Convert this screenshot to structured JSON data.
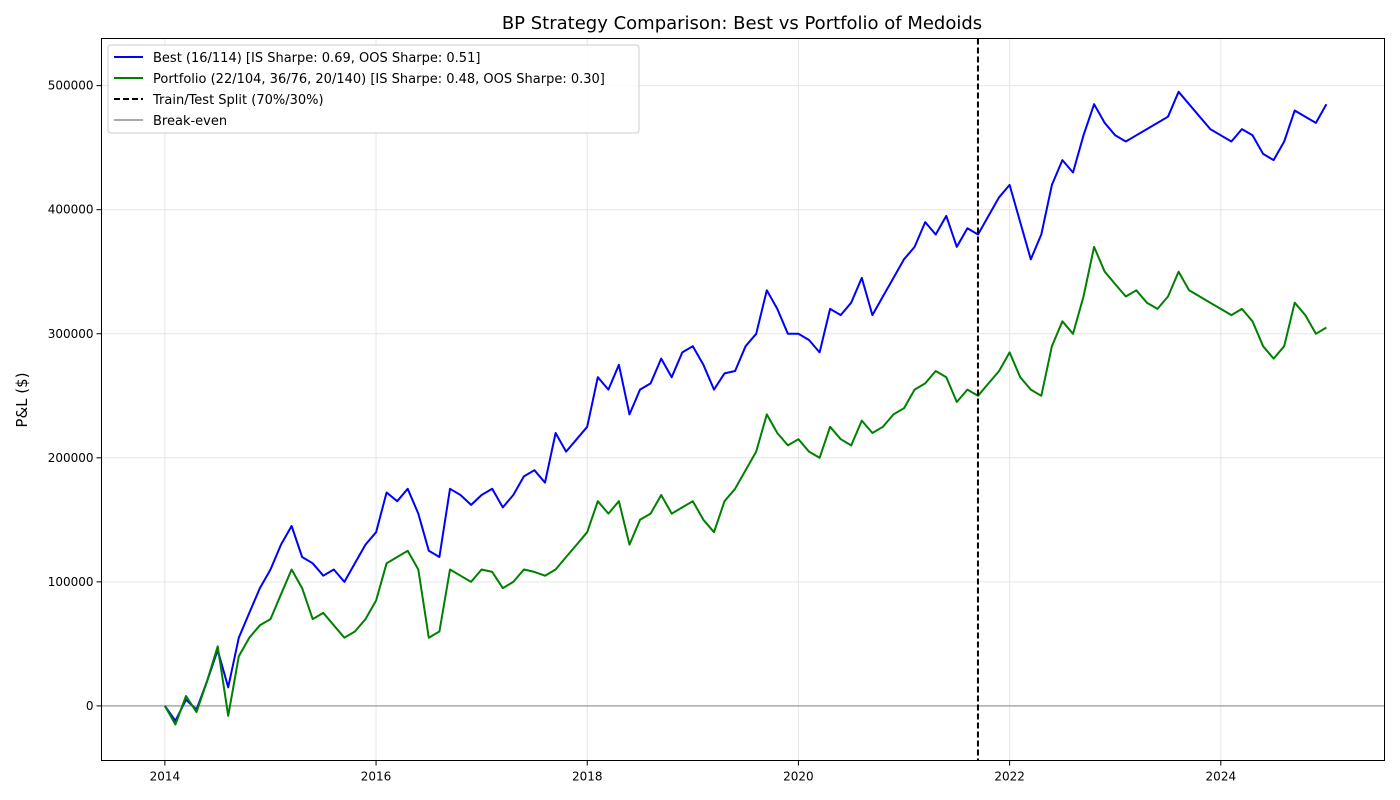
{
  "chart_data": {
    "type": "line",
    "title": "BP Strategy Comparison: Best vs Portfolio of Medoids",
    "xlabel": "",
    "ylabel": "P&L ($)",
    "xlim": [
      2013.4,
      2025.55
    ],
    "ylim": [
      -44000,
      538000
    ],
    "grid": true,
    "legend_position": "top-left",
    "x_ticks": [
      {
        "value": 2014,
        "label": "2014"
      },
      {
        "value": 2016,
        "label": "2016"
      },
      {
        "value": 2018,
        "label": "2018"
      },
      {
        "value": 2020,
        "label": "2020"
      },
      {
        "value": 2022,
        "label": "2022"
      },
      {
        "value": 2024,
        "label": "2024"
      }
    ],
    "y_ticks": [
      {
        "value": 0,
        "label": "0"
      },
      {
        "value": 100000,
        "label": "100000"
      },
      {
        "value": 200000,
        "label": "200000"
      },
      {
        "value": 300000,
        "label": "300000"
      },
      {
        "value": 400000,
        "label": "400000"
      },
      {
        "value": 500000,
        "label": "500000"
      }
    ],
    "series": [
      {
        "name": "Best (16/114) [IS Sharpe: 0.69, OOS Sharpe: 0.51]",
        "color": "#0000ff",
        "x": [
          2014.0,
          2014.1,
          2014.2,
          2014.3,
          2014.4,
          2014.5,
          2014.6,
          2014.7,
          2014.8,
          2014.9,
          2015.0,
          2015.1,
          2015.2,
          2015.3,
          2015.4,
          2015.5,
          2015.6,
          2015.7,
          2015.8,
          2015.9,
          2016.0,
          2016.1,
          2016.2,
          2016.3,
          2016.4,
          2016.5,
          2016.6,
          2016.7,
          2016.8,
          2016.9,
          2017.0,
          2017.1,
          2017.2,
          2017.3,
          2017.4,
          2017.5,
          2017.6,
          2017.7,
          2017.8,
          2017.9,
          2018.0,
          2018.1,
          2018.2,
          2018.3,
          2018.4,
          2018.5,
          2018.6,
          2018.7,
          2018.8,
          2018.9,
          2019.0,
          2019.1,
          2019.2,
          2019.3,
          2019.4,
          2019.5,
          2019.6,
          2019.7,
          2019.8,
          2019.9,
          2020.0,
          2020.1,
          2020.2,
          2020.3,
          2020.4,
          2020.5,
          2020.6,
          2020.7,
          2020.8,
          2020.9,
          2021.0,
          2021.1,
          2021.2,
          2021.3,
          2021.4,
          2021.5,
          2021.6,
          2021.7,
          2021.8,
          2021.9,
          2022.0,
          2022.1,
          2022.2,
          2022.3,
          2022.4,
          2022.5,
          2022.6,
          2022.7,
          2022.8,
          2022.9,
          2023.0,
          2023.1,
          2023.2,
          2023.3,
          2023.4,
          2023.5,
          2023.6,
          2023.7,
          2023.8,
          2023.9,
          2024.0,
          2024.1,
          2024.2,
          2024.3,
          2024.4,
          2024.5,
          2024.6,
          2024.7,
          2024.8,
          2024.9,
          2025.0
        ],
        "values": [
          0,
          -12000,
          5000,
          -3000,
          20000,
          45000,
          15000,
          55000,
          75000,
          95000,
          110000,
          130000,
          145000,
          120000,
          115000,
          105000,
          110000,
          100000,
          115000,
          130000,
          140000,
          172000,
          165000,
          175000,
          155000,
          125000,
          120000,
          175000,
          170000,
          162000,
          170000,
          175000,
          160000,
          170000,
          185000,
          190000,
          180000,
          220000,
          205000,
          215000,
          225000,
          265000,
          255000,
          275000,
          235000,
          255000,
          260000,
          280000,
          265000,
          285000,
          290000,
          275000,
          255000,
          268000,
          270000,
          290000,
          300000,
          335000,
          320000,
          300000,
          300000,
          295000,
          285000,
          320000,
          315000,
          325000,
          345000,
          315000,
          330000,
          345000,
          360000,
          370000,
          390000,
          380000,
          395000,
          370000,
          385000,
          380000,
          395000,
          410000,
          420000,
          390000,
          360000,
          380000,
          420000,
          440000,
          430000,
          460000,
          485000,
          470000,
          460000,
          455000,
          460000,
          465000,
          470000,
          475000,
          495000,
          485000,
          475000,
          465000,
          460000,
          455000,
          465000,
          460000,
          445000,
          440000,
          455000,
          480000,
          475000,
          470000,
          485000
        ]
      },
      {
        "name": "Portfolio (22/104, 36/76, 20/140) [IS Sharpe: 0.48, OOS Sharpe: 0.30]",
        "color": "#008000",
        "x": [
          2014.0,
          2014.1,
          2014.2,
          2014.3,
          2014.4,
          2014.5,
          2014.6,
          2014.7,
          2014.8,
          2014.9,
          2015.0,
          2015.1,
          2015.2,
          2015.3,
          2015.4,
          2015.5,
          2015.6,
          2015.7,
          2015.8,
          2015.9,
          2016.0,
          2016.1,
          2016.2,
          2016.3,
          2016.4,
          2016.5,
          2016.6,
          2016.7,
          2016.8,
          2016.9,
          2017.0,
          2017.1,
          2017.2,
          2017.3,
          2017.4,
          2017.5,
          2017.6,
          2017.7,
          2017.8,
          2017.9,
          2018.0,
          2018.1,
          2018.2,
          2018.3,
          2018.4,
          2018.5,
          2018.6,
          2018.7,
          2018.8,
          2018.9,
          2019.0,
          2019.1,
          2019.2,
          2019.3,
          2019.4,
          2019.5,
          2019.6,
          2019.7,
          2019.8,
          2019.9,
          2020.0,
          2020.1,
          2020.2,
          2020.3,
          2020.4,
          2020.5,
          2020.6,
          2020.7,
          2020.8,
          2020.9,
          2021.0,
          2021.1,
          2021.2,
          2021.3,
          2021.4,
          2021.5,
          2021.6,
          2021.7,
          2021.8,
          2021.9,
          2022.0,
          2022.1,
          2022.2,
          2022.3,
          2022.4,
          2022.5,
          2022.6,
          2022.7,
          2022.8,
          2022.9,
          2023.0,
          2023.1,
          2023.2,
          2023.3,
          2023.4,
          2023.5,
          2023.6,
          2023.7,
          2023.8,
          2023.9,
          2024.0,
          2024.1,
          2024.2,
          2024.3,
          2024.4,
          2024.5,
          2024.6,
          2024.7,
          2024.8,
          2024.9,
          2025.0
        ],
        "values": [
          0,
          -15000,
          8000,
          -5000,
          20000,
          48000,
          -8000,
          40000,
          55000,
          65000,
          70000,
          90000,
          110000,
          95000,
          70000,
          75000,
          65000,
          55000,
          60000,
          70000,
          85000,
          115000,
          120000,
          125000,
          110000,
          55000,
          60000,
          110000,
          105000,
          100000,
          110000,
          108000,
          95000,
          100000,
          110000,
          108000,
          105000,
          110000,
          120000,
          130000,
          140000,
          165000,
          155000,
          165000,
          130000,
          150000,
          155000,
          170000,
          155000,
          160000,
          165000,
          150000,
          140000,
          165000,
          175000,
          190000,
          205000,
          235000,
          220000,
          210000,
          215000,
          205000,
          200000,
          225000,
          215000,
          210000,
          230000,
          220000,
          225000,
          235000,
          240000,
          255000,
          260000,
          270000,
          265000,
          245000,
          255000,
          250000,
          260000,
          270000,
          285000,
          265000,
          255000,
          250000,
          290000,
          310000,
          300000,
          330000,
          370000,
          350000,
          340000,
          330000,
          335000,
          325000,
          320000,
          330000,
          350000,
          335000,
          330000,
          325000,
          320000,
          315000,
          320000,
          310000,
          290000,
          280000,
          290000,
          325000,
          315000,
          300000,
          305000
        ]
      }
    ],
    "reference_lines": {
      "split": {
        "name": "Train/Test Split (70%/30%)",
        "x": 2021.7,
        "color": "#000000",
        "style": "dashed"
      },
      "breakeven": {
        "name": "Break-even",
        "y": 0,
        "color": "#aaaaaa",
        "style": "solid"
      }
    }
  }
}
